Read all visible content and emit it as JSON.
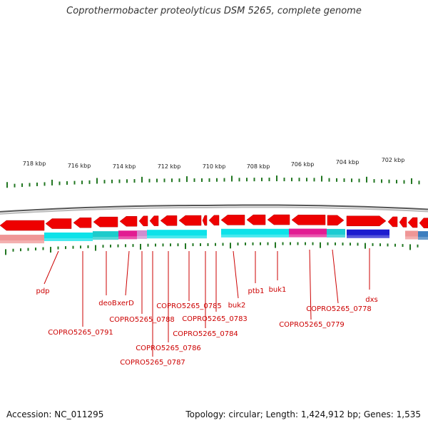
{
  "title": "Coprothermobacter proteolyticus DSM 5265, complete genome",
  "footer": {
    "accession": "Accession: NC_011295",
    "summary": "Topology: circular; Length: 1,424,912 bp; Genes: 1,535"
  },
  "colors": {
    "gene_red": "#ee0000",
    "label_red": "#cc0000",
    "tick_green": "#227722",
    "cyan": "#00e0e8",
    "magenta": "#e0108c",
    "navy": "#1010cc",
    "pink": "#ee9090",
    "backbone_gray": "#888888"
  },
  "kbp_labels": [
    "718 kbp",
    "716 kbp",
    "714 kbp",
    "712 kbp",
    "710 kbp",
    "708 kbp",
    "706 kbp",
    "704 kbp",
    "702 kbp"
  ],
  "gene_labels": [
    "pdp",
    "COPRO5265_0791",
    "deoB",
    "xerD",
    "COPRO5265_0788",
    "COPRO5265_0786",
    "COPRO5265_0787",
    "COPRO5265_0785",
    "COPRO5265_0783",
    "COPRO5265_0784",
    "buk2",
    "ptb1",
    "buk1",
    "COPRO5265_0779",
    "COPRO5265_0778",
    "dxs"
  ]
}
